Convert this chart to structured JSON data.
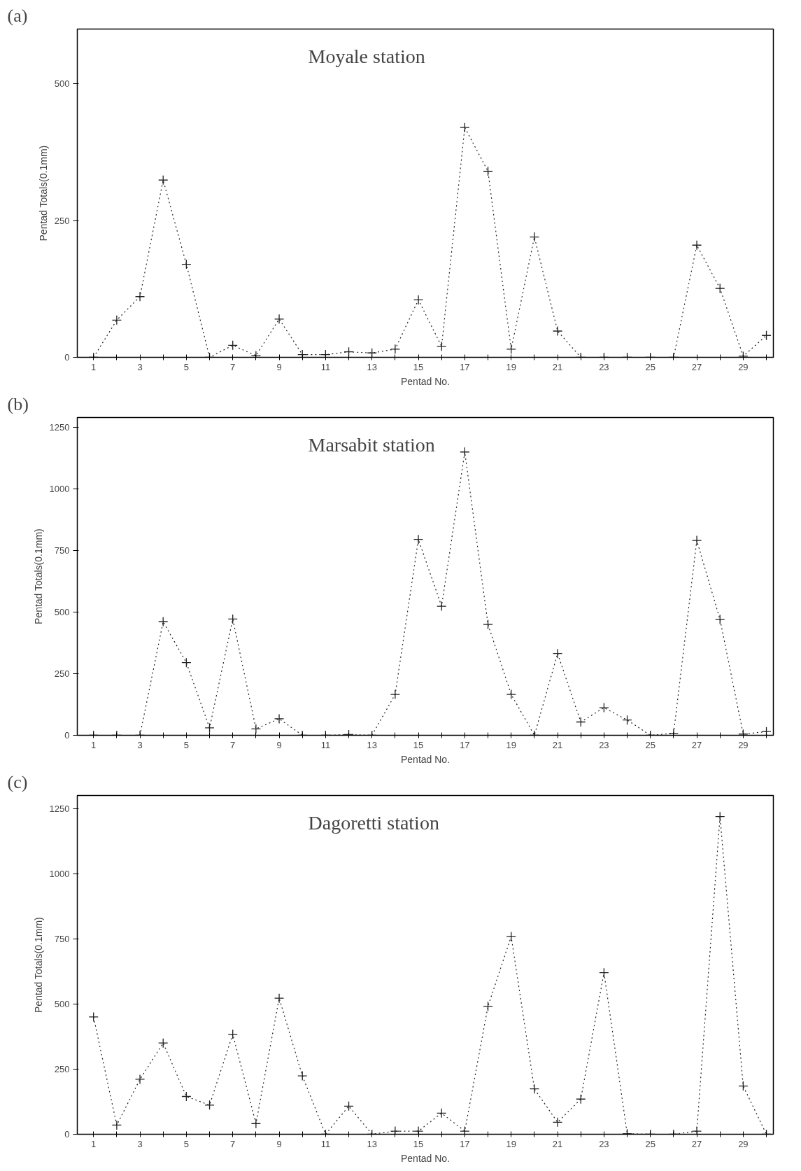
{
  "chart_data": [
    {
      "type": "line",
      "title": "Moyale station",
      "annotations": [
        "(a)"
      ],
      "xlabel": "Pentad No.",
      "ylabel": "Pentad Totals(0.1mm)",
      "x": [
        1,
        2,
        3,
        4,
        5,
        6,
        7,
        8,
        9,
        10,
        11,
        12,
        13,
        14,
        15,
        16,
        17,
        18,
        19,
        20,
        21,
        22,
        23,
        24,
        25,
        26,
        27,
        28,
        29,
        30
      ],
      "series": [
        {
          "color": "#222222",
          "values": [
            0,
            68,
            111,
            324,
            170,
            0,
            22,
            3,
            70,
            5,
            5,
            10,
            8,
            15,
            105,
            20,
            420,
            340,
            15,
            220,
            48,
            0,
            0,
            0,
            0,
            0,
            205,
            126,
            2,
            40
          ]
        }
      ],
      "xlim": [
        0.3,
        30.3
      ],
      "ylim": [
        0,
        600
      ],
      "yticks": [
        0,
        250,
        500
      ],
      "xticks": [
        1,
        {
          "value": 2,
          "label": null
        },
        3,
        {
          "value": 4,
          "label": null
        },
        5,
        {
          "value": 6,
          "label": null
        },
        7,
        {
          "value": 8,
          "label": null
        },
        9,
        {
          "value": 10,
          "label": null
        },
        11,
        {
          "value": 12,
          "label": null
        },
        13,
        {
          "value": 14,
          "label": null
        },
        15,
        {
          "value": 16,
          "label": null
        },
        17,
        {
          "value": 18,
          "label": null
        },
        19,
        {
          "value": 20,
          "label": null
        },
        21,
        {
          "value": 22,
          "label": null
        },
        23,
        {
          "value": 24,
          "label": null
        },
        25,
        {
          "value": 26,
          "label": null
        },
        27,
        {
          "value": 28,
          "label": null
        },
        29,
        {
          "value": 30,
          "label": null
        }
      ],
      "grid": false,
      "marker": "cross",
      "line_style": "dotted"
    },
    {
      "type": "line",
      "title": "Marsabit station",
      "annotations": [
        "(b)"
      ],
      "xlabel": "Pentad No.",
      "ylabel": "Pentad Totals(0.1mm)",
      "x": [
        1,
        2,
        3,
        4,
        5,
        6,
        7,
        8,
        9,
        10,
        11,
        12,
        13,
        14,
        15,
        16,
        17,
        18,
        19,
        20,
        21,
        22,
        23,
        24,
        25,
        26,
        27,
        28,
        29,
        30
      ],
      "series": [
        {
          "color": "#222222",
          "values": [
            0,
            0,
            0,
            461,
            295,
            30,
            472,
            26,
            67,
            0,
            0,
            3,
            0,
            166,
            795,
            524,
            1150,
            450,
            166,
            0,
            332,
            54,
            112,
            62,
            0,
            8,
            791,
            470,
            5,
            15
          ]
        }
      ],
      "xlim": [
        0.3,
        30.3
      ],
      "ylim": [
        0,
        1290
      ],
      "yticks": [
        0,
        250,
        500,
        750,
        1000,
        1250
      ],
      "xticks": [
        1,
        {
          "value": 2,
          "label": null
        },
        3,
        {
          "value": 4,
          "label": null
        },
        5,
        {
          "value": 6,
          "label": null
        },
        7,
        {
          "value": 8,
          "label": null
        },
        9,
        {
          "value": 10,
          "label": null
        },
        11,
        {
          "value": 12,
          "label": null
        },
        13,
        {
          "value": 14,
          "label": null
        },
        15,
        {
          "value": 16,
          "label": null
        },
        17,
        {
          "value": 18,
          "label": null
        },
        19,
        {
          "value": 20,
          "label": null
        },
        21,
        {
          "value": 22,
          "label": null
        },
        23,
        {
          "value": 24,
          "label": null
        },
        25,
        {
          "value": 26,
          "label": null
        },
        27,
        {
          "value": 28,
          "label": null
        },
        29,
        {
          "value": 30,
          "label": null
        }
      ],
      "grid": false,
      "marker": "cross",
      "line_style": "dotted"
    },
    {
      "type": "line",
      "title": "Dagoretti station",
      "annotations": [
        "(c)"
      ],
      "xlabel": "Pentad No.",
      "ylabel": "Pentad Totals(0.1mm)",
      "x": [
        1,
        2,
        3,
        4,
        5,
        6,
        7,
        8,
        9,
        10,
        11,
        12,
        13,
        14,
        15,
        16,
        17,
        18,
        19,
        20,
        21,
        22,
        23,
        24,
        25,
        26,
        27,
        28,
        29,
        30
      ],
      "series": [
        {
          "color": "#222222",
          "values": [
            450,
            35,
            211,
            350,
            145,
            112,
            384,
            41,
            522,
            224,
            0,
            108,
            0,
            12,
            12,
            81,
            12,
            491,
            759,
            174,
            46,
            135,
            620,
            2,
            0,
            0,
            12,
            1219,
            185,
            0
          ]
        }
      ],
      "xlim": [
        0.3,
        30.3
      ],
      "ylim": [
        0,
        1300
      ],
      "yticks": [
        0,
        250,
        500,
        750,
        1000,
        1250
      ],
      "xticks": [
        1,
        {
          "value": 2,
          "label": null
        },
        3,
        {
          "value": 4,
          "label": null
        },
        5,
        {
          "value": 6,
          "label": null
        },
        7,
        {
          "value": 8,
          "label": null
        },
        9,
        {
          "value": 10,
          "label": null
        },
        11,
        {
          "value": 12,
          "label": null
        },
        13,
        {
          "value": 14,
          "label": null
        },
        15,
        {
          "value": 16,
          "label": null
        },
        17,
        {
          "value": 18,
          "label": null
        },
        19,
        {
          "value": 20,
          "label": null
        },
        21,
        {
          "value": 22,
          "label": null
        },
        23,
        {
          "value": 24,
          "label": null
        },
        25,
        {
          "value": 26,
          "label": null
        },
        27,
        {
          "value": 28,
          "label": null
        },
        29,
        {
          "value": 30,
          "label": null
        }
      ],
      "grid": false,
      "marker": "cross",
      "line_style": "dotted"
    }
  ]
}
